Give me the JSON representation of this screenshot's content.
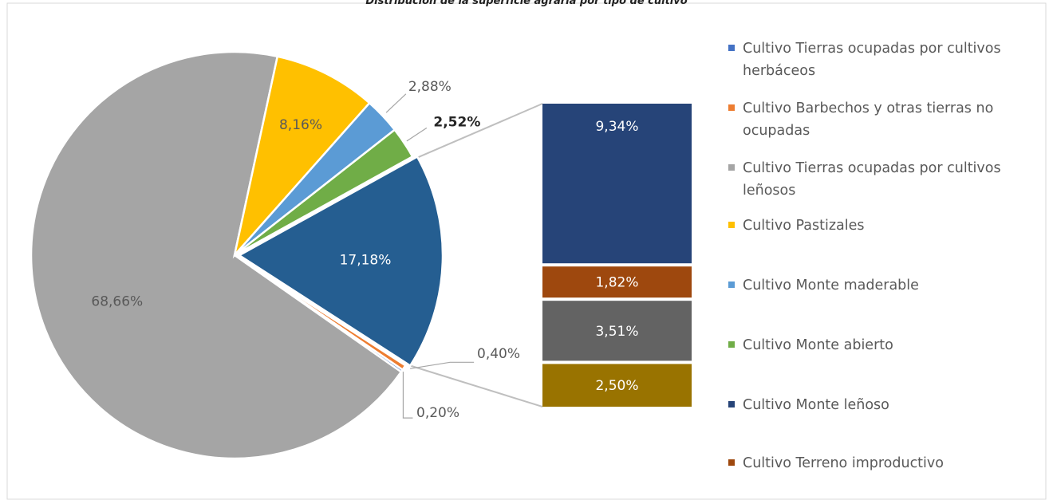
{
  "chart_data": {
    "type": "pie",
    "subtype": "bar-of-pie",
    "title": "Distribución de la superficie agraria por tipo de cultivo",
    "slices": [
      {
        "name": "Cultivo Tierras ocupadas por cultivos herbáceos",
        "value": 17.18,
        "label": "17,18%",
        "color": "#255E91"
      },
      {
        "name": "Cultivo Barbechos y otras tierras no ocupadas",
        "value": 0.4,
        "label": "0,40%",
        "color": "#ED7D31"
      },
      {
        "name": "Cultivo Tierras ocupadas por cultivos leñosos",
        "value": 68.66,
        "label": "68,66%",
        "color": "#A5A5A5"
      },
      {
        "name": "Cultivo Pastizales",
        "value": 8.16,
        "label": "8,16%",
        "color": "#FFC000"
      },
      {
        "name": "Cultivo Monte maderable",
        "value": 2.88,
        "label": "2,88%",
        "color": "#5B9BD5"
      },
      {
        "name": "Cultivo Monte abierto",
        "value": 2.52,
        "label": "2,52%",
        "color": "#70AD47"
      }
    ],
    "other_label": "0,20%",
    "bar_segments": [
      {
        "name": "Cultivo Monte leñoso",
        "value": 9.34,
        "label": "9,34%",
        "color": "#264478"
      },
      {
        "name": "Cultivo Terreno improductivo",
        "value": 1.82,
        "label": "1,82%",
        "color": "#9E480E"
      },
      {
        "name": "",
        "value": 3.51,
        "label": "3,51%",
        "color": "#636363"
      },
      {
        "name": "",
        "value": 2.5,
        "label": "2,50%",
        "color": "#997300"
      }
    ],
    "legend": [
      {
        "label": "Cultivo Tierras ocupadas por cultivos herbáceos",
        "lines": [
          "Cultivo Tierras ocupadas por cultivos",
          "herbáceos"
        ],
        "color": "#4472C4"
      },
      {
        "label": "Cultivo Barbechos y otras tierras no ocupadas",
        "lines": [
          "Cultivo Barbechos y otras tierras no",
          "ocupadas"
        ],
        "color": "#ED7D31"
      },
      {
        "label": "Cultivo Tierras ocupadas por cultivos leñosos",
        "lines": [
          "Cultivo Tierras ocupadas por cultivos",
          "leñosos"
        ],
        "color": "#A5A5A5"
      },
      {
        "label": "Cultivo Pastizales",
        "lines": [
          "Cultivo Pastizales"
        ],
        "color": "#FFC000"
      },
      {
        "label": "Cultivo Monte maderable",
        "lines": [
          "Cultivo Monte maderable"
        ],
        "color": "#5B9BD5"
      },
      {
        "label": "Cultivo Monte abierto",
        "lines": [
          "Cultivo Monte abierto"
        ],
        "color": "#70AD47"
      },
      {
        "label": "Cultivo Monte leñoso",
        "lines": [
          "Cultivo Monte leñoso"
        ],
        "color": "#264478"
      },
      {
        "label": "Cultivo Terreno improductivo",
        "lines": [
          "Cultivo Terreno improductivo"
        ],
        "color": "#9E480E"
      }
    ],
    "legend_position": "right"
  }
}
